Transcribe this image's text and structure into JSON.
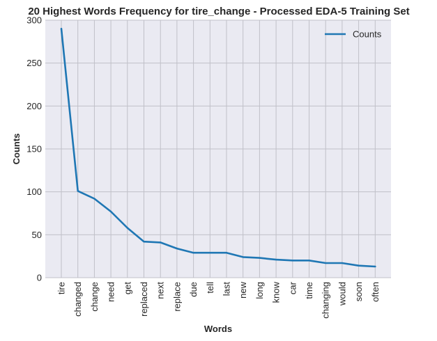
{
  "chart_data": {
    "type": "line",
    "title": "20 Highest Words Frequency for tire_change - Processed EDA-5 Training Set",
    "xlabel": "Words",
    "ylabel": "Counts",
    "ylim": [
      0,
      300
    ],
    "yticks": [
      0,
      50,
      100,
      150,
      200,
      250,
      300
    ],
    "grid": true,
    "legend_position": "top-right",
    "categories": [
      "tire",
      "changed",
      "change",
      "need",
      "get",
      "replaced",
      "next",
      "replace",
      "due",
      "tell",
      "last",
      "new",
      "long",
      "know",
      "car",
      "time",
      "changing",
      "would",
      "soon",
      "often"
    ],
    "series": [
      {
        "name": "Counts",
        "color": "#1f77b4",
        "values": [
          290,
          101,
          92,
          77,
          58,
          42,
          41,
          34,
          29,
          29,
          29,
          24,
          23,
          21,
          20,
          20,
          17,
          17,
          14,
          13
        ]
      }
    ],
    "colors": {
      "plot_background": "#eaeaf2",
      "grid": "#c0c0c8",
      "text": "#262626"
    }
  }
}
